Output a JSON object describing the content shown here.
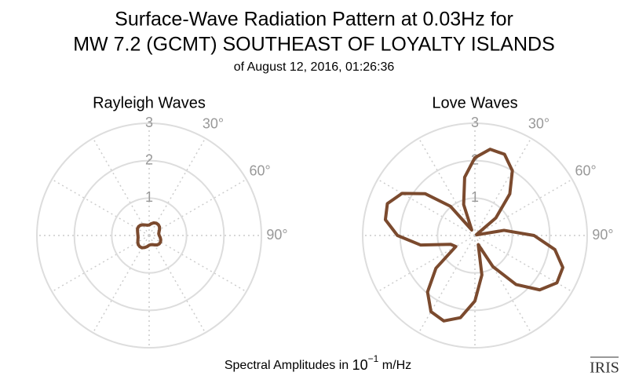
{
  "title": [
    "Surface-Wave Radiation Pattern at 0.03Hz for",
    "MW 7.2 (GCMT) SOUTHEAST OF LOYALTY ISLANDS"
  ],
  "subtitle": "of August 12, 2016, 01:26:36",
  "footer": {
    "text": "Spectral Amplitudes in",
    "base": "10",
    "exponent": "−1",
    "unit": "m/Hz"
  },
  "logo": "IRIS",
  "chart_data": [
    {
      "type": "polar",
      "title": "Rayleigh Waves",
      "color": "#7b4a2e",
      "theta": [
        0,
        10,
        20,
        30,
        40,
        50,
        60,
        70,
        80,
        90,
        100,
        110,
        120,
        130,
        140,
        150,
        160,
        170,
        180,
        190,
        200,
        210,
        220,
        230,
        240,
        250,
        260,
        270,
        280,
        290,
        300,
        310,
        320,
        330,
        340,
        350
      ],
      "values": [
        0.28,
        0.32,
        0.36,
        0.38,
        0.38,
        0.36,
        0.32,
        0.28,
        0.26,
        0.27,
        0.3,
        0.33,
        0.35,
        0.35,
        0.33,
        0.29,
        0.26,
        0.25,
        0.26,
        0.3,
        0.34,
        0.38,
        0.39,
        0.38,
        0.35,
        0.32,
        0.3,
        0.3,
        0.31,
        0.33,
        0.36,
        0.37,
        0.36,
        0.33,
        0.3,
        0.28
      ],
      "rlim": [
        0,
        3
      ],
      "rticks": [
        1,
        2,
        3
      ],
      "thetagrid": [
        0,
        30,
        60,
        90,
        120,
        150,
        180,
        210,
        240,
        270,
        300,
        330
      ],
      "thetaticks": [
        {
          "value": 30,
          "label": "30°"
        },
        {
          "value": 60,
          "label": "60°"
        },
        {
          "value": 90,
          "label": "90°"
        }
      ]
    },
    {
      "type": "polar",
      "title": "Love Waves",
      "color": "#7b4a2e",
      "theta": [
        0,
        10,
        20,
        30,
        40,
        50,
        60,
        70,
        80,
        90,
        100,
        110,
        120,
        130,
        140,
        150,
        160,
        170,
        180,
        190,
        200,
        210,
        220,
        230,
        240,
        250,
        260,
        270,
        280,
        290,
        300,
        310,
        320,
        330,
        340,
        350
      ],
      "values": [
        2.08,
        2.34,
        2.31,
        2.0,
        1.45,
        0.73,
        0.05,
        0.05,
        0.79,
        1.58,
        2.17,
        2.5,
        2.53,
        2.26,
        1.71,
        0.96,
        0.26,
        1.07,
        1.75,
        2.23,
        2.43,
        2.35,
        1.97,
        1.36,
        0.59,
        0.69,
        1.47,
        2.07,
        2.43,
        2.49,
        2.25,
        1.74,
        1.02,
        0.17,
        0.88,
        1.58
      ],
      "rlim": [
        0,
        3
      ],
      "rticks": [
        1,
        2,
        3
      ],
      "thetagrid": [
        0,
        30,
        60,
        90,
        120,
        150,
        180,
        210,
        240,
        270,
        300,
        330
      ],
      "thetaticks": [
        {
          "value": 30,
          "label": "30°"
        },
        {
          "value": 60,
          "label": "60°"
        },
        {
          "value": 90,
          "label": "90°"
        }
      ]
    }
  ]
}
